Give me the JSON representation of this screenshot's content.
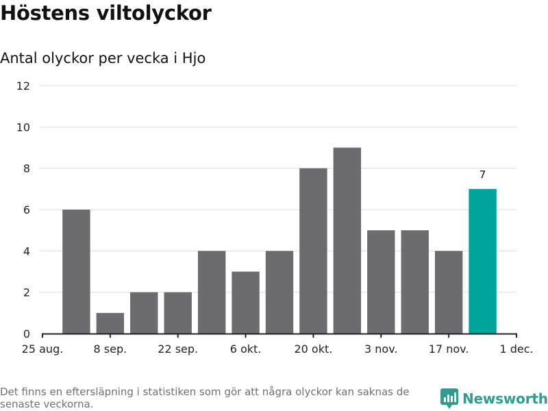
{
  "header": {
    "title": "Höstens viltolyckor",
    "subtitle": "Antal olyckor per vecka i Hjo"
  },
  "footer": {
    "note": "Det finns en eftersläpning i statistiken som gör att några olyckor kan saknas de senaste veckorna.",
    "brand": "Newsworthy",
    "brand_icon": "newsworthy-logo-icon"
  },
  "colors": {
    "bar": "#6c6b70",
    "highlight": "#00a49b",
    "grid": "#dddddd",
    "axis": "#222222",
    "brand": "#2e9c8e"
  },
  "chart_data": {
    "type": "bar",
    "title": "Höstens viltolyckor",
    "subtitle": "Antal olyckor per vecka i Hjo",
    "x": [
      "2019-09-01",
      "2019-09-08",
      "2019-09-15",
      "2019-09-22",
      "2019-09-29",
      "2019-10-06",
      "2019-10-13",
      "2019-10-20",
      "2019-10-27",
      "2019-11-03",
      "2019-11-10",
      "2019-11-17",
      "2019-11-24"
    ],
    "values": [
      6,
      1,
      2,
      2,
      4,
      3,
      4,
      8,
      9,
      5,
      5,
      4,
      7
    ],
    "highlight_index": 12,
    "data_labels": [
      {
        "index": 12,
        "text": "7"
      }
    ],
    "xlim": [
      "2019-08-25",
      "2019-12-01"
    ],
    "xticks": [
      {
        "date": "2019-08-25",
        "label": "25 aug."
      },
      {
        "date": "2019-09-08",
        "label": "8 sep."
      },
      {
        "date": "2019-09-22",
        "label": "22 sep."
      },
      {
        "date": "2019-10-06",
        "label": "6 okt."
      },
      {
        "date": "2019-10-20",
        "label": "20 okt."
      },
      {
        "date": "2019-11-03",
        "label": "3 nov."
      },
      {
        "date": "2019-11-17",
        "label": "17 nov."
      },
      {
        "date": "2019-12-01",
        "label": "1 dec."
      }
    ],
    "ylim": [
      0,
      12
    ],
    "yticks": [
      0,
      2,
      4,
      6,
      8,
      10,
      12
    ],
    "xlabel": "",
    "ylabel": "",
    "grid": true
  }
}
